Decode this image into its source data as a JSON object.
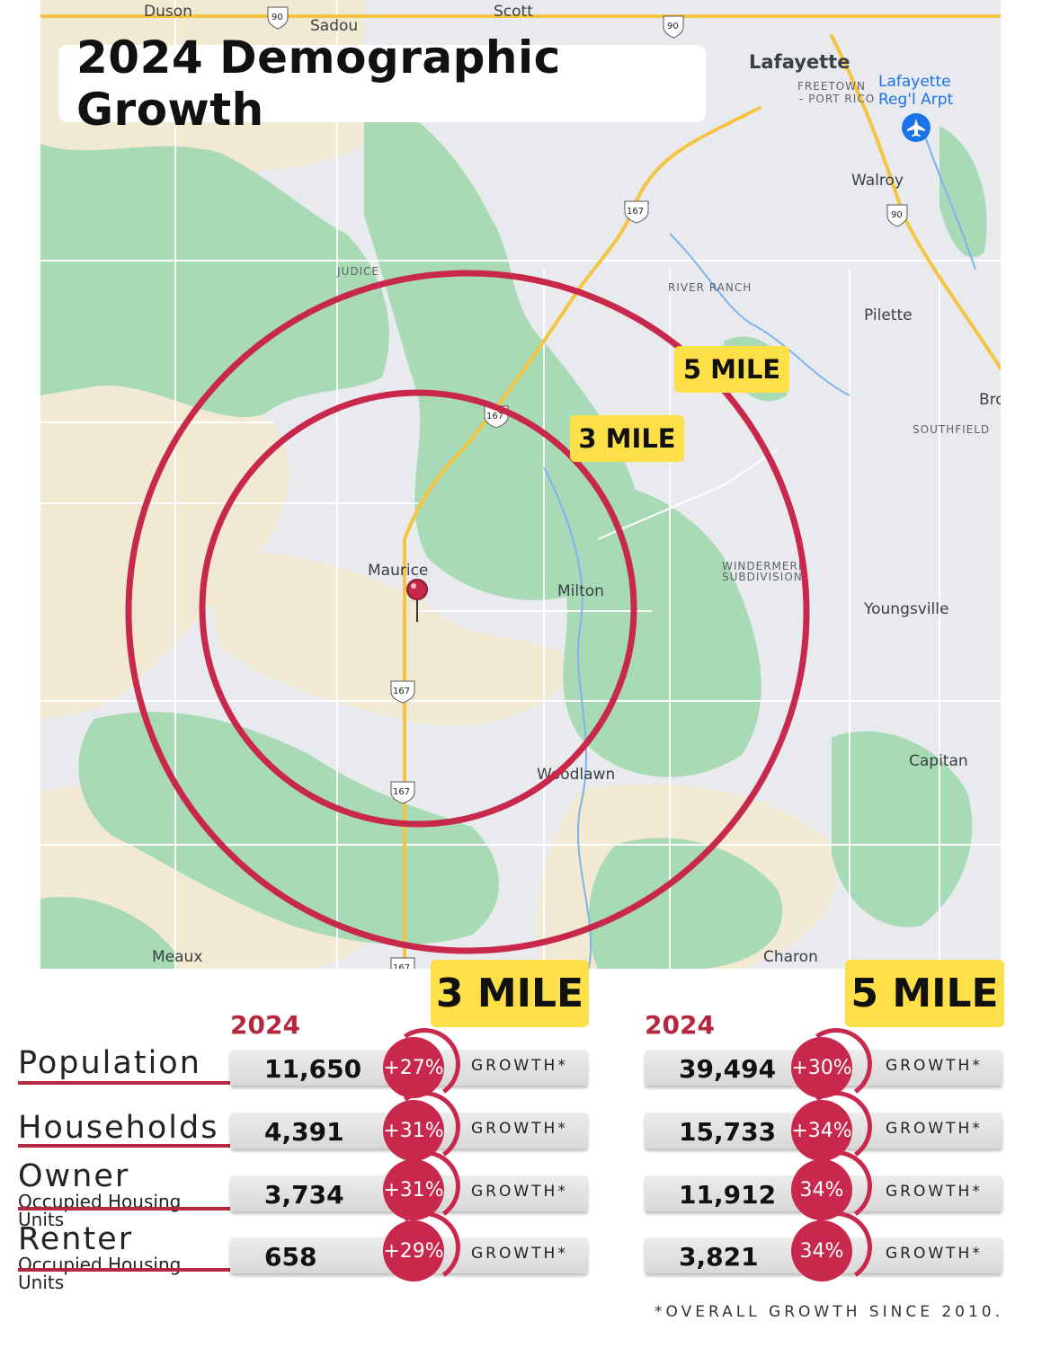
{
  "title": "2024 Demographic Growth",
  "map": {
    "places": [
      "Duson",
      "Sadou",
      "Scott",
      "Lafayette",
      "FREETOWN",
      "- PORT RICO",
      "Lafayette",
      "Reg'l Arpt",
      "Walroy",
      "JUDICE",
      "RIVER RANCH",
      "Pilette",
      "Bro",
      "SOUTHFIELD",
      "Maurice",
      "Milton",
      "WINDERMERE",
      "SUBDIVISION",
      "Youngsville",
      "Woodlawn",
      "Capitan",
      "Meaux",
      "Charon"
    ],
    "route_shields": [
      "90",
      "90",
      "167",
      "90",
      "167",
      "167",
      "167",
      "167"
    ],
    "airport_icon": "airplane-icon",
    "pin_icon": "map-pin-icon",
    "radius_labels": {
      "five": "5 MILE",
      "three": "3 MILE"
    },
    "colors": {
      "ring": "#c8284b",
      "label_bg": "#fde047",
      "land": "#e8eaed",
      "forest": "#a8dab5",
      "farmland": "#f1e9d2",
      "highway": "#f4c542"
    }
  },
  "stats": {
    "three_mile": {
      "heading": "3 MILE",
      "year": "2024",
      "rows": [
        {
          "value": "11,650",
          "change": "+27%",
          "growth": "GROWTH*"
        },
        {
          "value": "4,391",
          "change": "+31%",
          "growth": "GROWTH*"
        },
        {
          "value": "3,734",
          "change": "+31%",
          "growth": "GROWTH*"
        },
        {
          "value": "658",
          "change": "+29%",
          "growth": "GROWTH*"
        }
      ]
    },
    "five_mile": {
      "heading": "5 MILE",
      "year": "2024",
      "rows": [
        {
          "value": "39,494",
          "change": "+30%",
          "growth": "GROWTH*"
        },
        {
          "value": "15,733",
          "change": "+34%",
          "growth": "GROWTH*"
        },
        {
          "value": "11,912",
          "change": "34%",
          "growth": "GROWTH*"
        },
        {
          "value": "3,821",
          "change": "34%",
          "growth": "GROWTH*"
        }
      ]
    },
    "row_labels": [
      {
        "main": "Population",
        "sub": ""
      },
      {
        "main": "Households",
        "sub": ""
      },
      {
        "main": "Owner",
        "sub": "Occupied Housing Units"
      },
      {
        "main": "Renter",
        "sub": "Occupied Housing Units"
      }
    ],
    "accent_color": "#c8284b"
  },
  "footnote": "*OVERALL GROWTH SINCE 2010."
}
